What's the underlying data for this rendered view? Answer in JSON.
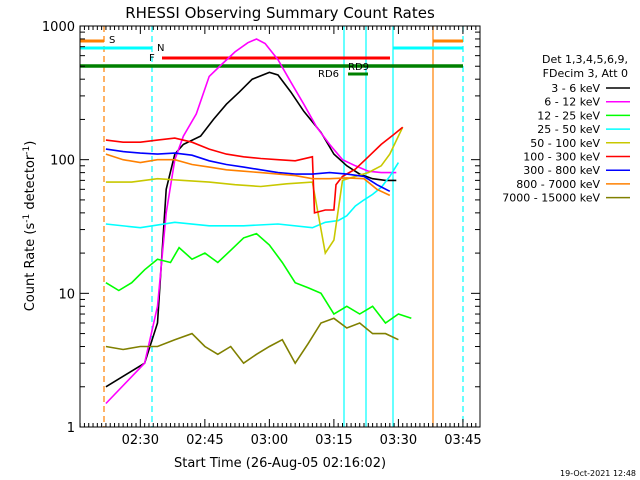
{
  "chart_data": {
    "type": "line",
    "title": "RHESSI Observing Summary Count Rates",
    "xlabel": "Start Time (26-Aug-05 02:16:02)",
    "ylabel": "Count Rate (s⁻¹ detector⁻¹)",
    "ylog": true,
    "ylim": [
      1,
      1000
    ],
    "xlim_minutes": [
      -4.03,
      88.97
    ],
    "xticks": [
      {
        "label": "02:30",
        "value": 10
      },
      {
        "label": "02:45",
        "value": 25
      },
      {
        "label": "03:00",
        "value": 40
      },
      {
        "label": "03:15",
        "value": 55
      },
      {
        "label": "03:30",
        "value": 70
      },
      {
        "label": "03:45",
        "value": 85
      }
    ],
    "yticks": [
      {
        "label": "1000",
        "value": 1000
      },
      {
        "label": "100",
        "value": 100
      },
      {
        "label": "10",
        "value": 10
      },
      {
        "label": "1",
        "value": 1
      }
    ],
    "legend_header": [
      "Det 1,3,4,5,6,9,",
      "FDecim 3, Att 0"
    ],
    "series": [
      {
        "name": "3 - 6 keV",
        "color": "#000000",
        "points": [
          [
            2,
            2
          ],
          [
            11,
            3
          ],
          [
            14,
            6
          ],
          [
            16,
            60
          ],
          [
            18,
            110
          ],
          [
            20,
            130
          ],
          [
            24,
            150
          ],
          [
            27,
            200
          ],
          [
            30,
            260
          ],
          [
            33,
            320
          ],
          [
            36,
            400
          ],
          [
            40,
            450
          ],
          [
            42,
            430
          ],
          [
            45,
            320
          ],
          [
            48,
            230
          ],
          [
            52,
            160
          ],
          [
            55,
            110
          ],
          [
            58,
            90
          ],
          [
            61,
            78
          ],
          [
            64,
            72
          ],
          [
            67,
            70
          ],
          [
            69.5,
            70
          ]
        ]
      },
      {
        "name": "6 - 12 keV",
        "color": "#ff00ff",
        "points": [
          [
            2,
            1.5
          ],
          [
            11,
            3
          ],
          [
            14,
            8
          ],
          [
            16,
            40
          ],
          [
            18,
            100
          ],
          [
            20,
            150
          ],
          [
            23,
            220
          ],
          [
            26,
            420
          ],
          [
            29,
            520
          ],
          [
            32,
            640
          ],
          [
            35,
            750
          ],
          [
            37,
            800
          ],
          [
            39,
            740
          ],
          [
            42,
            560
          ],
          [
            45,
            380
          ],
          [
            48,
            260
          ],
          [
            51,
            175
          ],
          [
            54,
            130
          ],
          [
            57,
            100
          ],
          [
            60,
            90
          ],
          [
            63,
            82
          ],
          [
            66,
            80
          ],
          [
            69.5,
            80
          ]
        ]
      },
      {
        "name": "12 - 25 keV",
        "color": "#00ff00",
        "points": [
          [
            2,
            12
          ],
          [
            5,
            10.5
          ],
          [
            8,
            12
          ],
          [
            11,
            15
          ],
          [
            14,
            18
          ],
          [
            17,
            17
          ],
          [
            19,
            22
          ],
          [
            22,
            18
          ],
          [
            25,
            20
          ],
          [
            28,
            17
          ],
          [
            31,
            21
          ],
          [
            34,
            26
          ],
          [
            37,
            28
          ],
          [
            40,
            23
          ],
          [
            43,
            17
          ],
          [
            46,
            12
          ],
          [
            49,
            11
          ],
          [
            52,
            10
          ],
          [
            55,
            7
          ],
          [
            58,
            8
          ],
          [
            61,
            7
          ],
          [
            64,
            8
          ],
          [
            67,
            6
          ],
          [
            70,
            7
          ],
          [
            73,
            6.5
          ]
        ]
      },
      {
        "name": "25 - 50 keV",
        "color": "#00ffff",
        "points": [
          [
            2,
            33
          ],
          [
            10,
            31
          ],
          [
            18,
            34
          ],
          [
            26,
            32
          ],
          [
            34,
            32
          ],
          [
            42,
            33
          ],
          [
            50,
            31
          ],
          [
            53,
            34
          ],
          [
            56,
            35
          ],
          [
            58,
            38
          ],
          [
            60,
            45
          ],
          [
            62,
            50
          ],
          [
            64,
            55
          ],
          [
            66,
            62
          ],
          [
            68,
            75
          ],
          [
            70,
            95
          ]
        ]
      },
      {
        "name": "50 - 100 keV",
        "color": "#c8c800",
        "points": [
          [
            2,
            68
          ],
          [
            8,
            68
          ],
          [
            14,
            72
          ],
          [
            20,
            70
          ],
          [
            26,
            68
          ],
          [
            32,
            65
          ],
          [
            38,
            63
          ],
          [
            44,
            66
          ],
          [
            50,
            68
          ],
          [
            53,
            20
          ],
          [
            55,
            25
          ],
          [
            57,
            70
          ],
          [
            60,
            75
          ],
          [
            63,
            80
          ],
          [
            66,
            90
          ],
          [
            68,
            110
          ],
          [
            70,
            150
          ],
          [
            71,
            175
          ]
        ]
      },
      {
        "name": "100 - 300 keV",
        "color": "#ff0000",
        "points": [
          [
            2,
            140
          ],
          [
            6,
            135
          ],
          [
            10,
            135
          ],
          [
            14,
            140
          ],
          [
            18,
            145
          ],
          [
            22,
            135
          ],
          [
            26,
            120
          ],
          [
            30,
            110
          ],
          [
            34,
            105
          ],
          [
            38,
            102
          ],
          [
            42,
            100
          ],
          [
            46,
            98
          ],
          [
            50,
            105
          ],
          [
            50.5,
            40
          ],
          [
            53,
            42
          ],
          [
            55,
            42
          ],
          [
            55.5,
            65
          ],
          [
            57,
            75
          ],
          [
            60,
            85
          ],
          [
            63,
            105
          ],
          [
            66,
            130
          ],
          [
            69,
            155
          ],
          [
            71,
            175
          ]
        ]
      },
      {
        "name": "300 - 800 keV",
        "color": "#0000ff",
        "points": [
          [
            2,
            120
          ],
          [
            6,
            115
          ],
          [
            10,
            112
          ],
          [
            14,
            110
          ],
          [
            18,
            112
          ],
          [
            22,
            108
          ],
          [
            26,
            98
          ],
          [
            30,
            92
          ],
          [
            34,
            88
          ],
          [
            38,
            84
          ],
          [
            42,
            80
          ],
          [
            46,
            78
          ],
          [
            50,
            78
          ],
          [
            54,
            80
          ],
          [
            58,
            78
          ],
          [
            62,
            75
          ],
          [
            65,
            65
          ],
          [
            68,
            58
          ]
        ]
      },
      {
        "name": "800 - 7000 keV",
        "color": "#ff8000",
        "points": [
          [
            2,
            110
          ],
          [
            6,
            100
          ],
          [
            10,
            95
          ],
          [
            14,
            100
          ],
          [
            18,
            100
          ],
          [
            22,
            92
          ],
          [
            26,
            88
          ],
          [
            30,
            84
          ],
          [
            34,
            82
          ],
          [
            38,
            80
          ],
          [
            42,
            78
          ],
          [
            46,
            76
          ],
          [
            50,
            72
          ],
          [
            54,
            72
          ],
          [
            58,
            73
          ],
          [
            62,
            72
          ],
          [
            65,
            60
          ],
          [
            68,
            54
          ]
        ]
      },
      {
        "name": "7000 - 15000 keV",
        "color": "#808000",
        "points": [
          [
            2,
            4
          ],
          [
            6,
            3.8
          ],
          [
            10,
            4
          ],
          [
            14,
            4
          ],
          [
            18,
            4.5
          ],
          [
            22,
            5
          ],
          [
            25,
            4
          ],
          [
            28,
            3.5
          ],
          [
            31,
            4
          ],
          [
            34,
            3
          ],
          [
            37,
            3.5
          ],
          [
            40,
            4
          ],
          [
            43,
            4.5
          ],
          [
            46,
            3
          ],
          [
            49,
            4.2
          ],
          [
            52,
            6
          ],
          [
            55,
            6.5
          ],
          [
            58,
            5.5
          ],
          [
            61,
            6
          ],
          [
            64,
            5
          ],
          [
            67,
            5
          ],
          [
            70,
            4.5
          ]
        ]
      }
    ],
    "state_bars": [
      {
        "label": "S",
        "color": "#ff8000"
      },
      {
        "label": "N",
        "color": "#00ffff"
      },
      {
        "label": "F",
        "color": "#ff0000"
      },
      {
        "label": "RD9",
        "color": "#008000"
      },
      {
        "label": "RD6",
        "color": "#008000"
      }
    ],
    "footer_date": "19-Oct-2021 12:48"
  }
}
